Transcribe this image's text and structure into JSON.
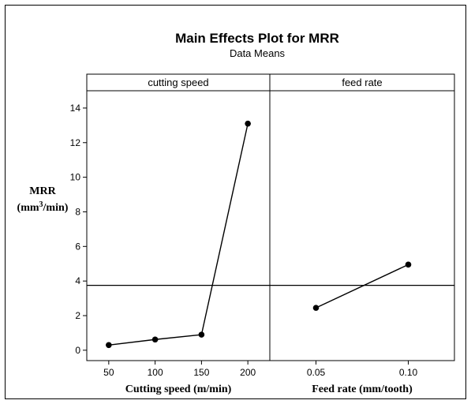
{
  "chart_data": {
    "type": "line",
    "title": "Main Effects Plot for MRR",
    "subtitle": "Data Means",
    "ylabel": {
      "main": "MRR",
      "unit_prefix": "(mm",
      "unit_sup": "3",
      "unit_suffix": "/min)"
    },
    "ylim": [
      -0.6,
      15.0
    ],
    "yticks": [
      0,
      2,
      4,
      6,
      8,
      10,
      12,
      14
    ],
    "mean_line": 3.75,
    "grid": false,
    "panels": [
      {
        "strip": "cutting speed",
        "xlabel": "Cutting speed (m/min)",
        "categories": [
          "50",
          "100",
          "150",
          "200"
        ],
        "values": [
          0.3,
          0.62,
          0.9,
          13.1
        ]
      },
      {
        "strip": "feed rate",
        "xlabel": "Feed rate (mm/tooth)",
        "categories": [
          "0.05",
          "0.10"
        ],
        "values": [
          2.45,
          4.95
        ]
      }
    ]
  }
}
